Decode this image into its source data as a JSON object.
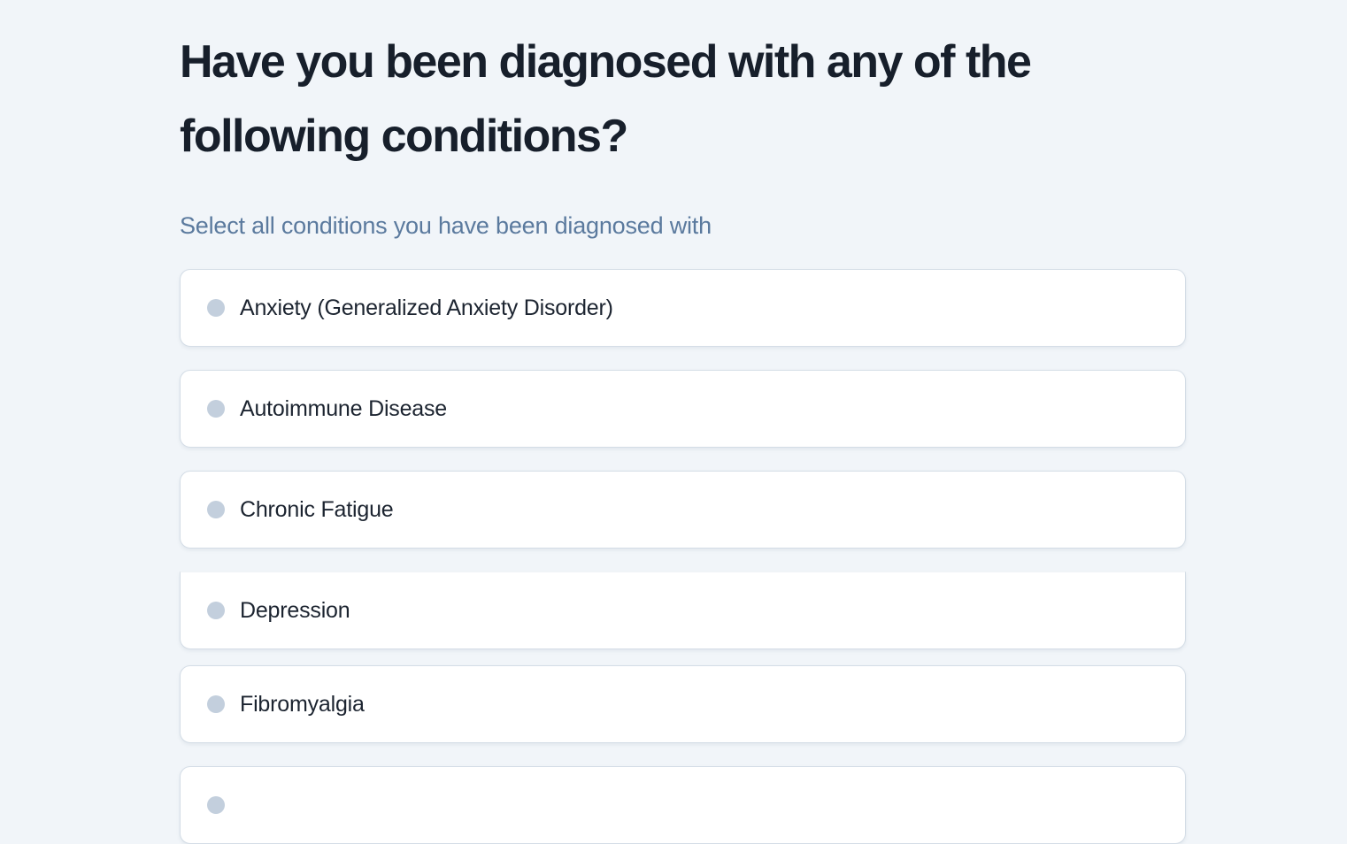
{
  "question": {
    "title": "Have you been diagnosed with any of the following conditions?",
    "subtitle": "Select all conditions you have been diagnosed with"
  },
  "options": [
    {
      "label": "Anxiety (Generalized Anxiety Disorder)"
    },
    {
      "label": "Autoimmune Disease"
    },
    {
      "label": "Chronic Fatigue"
    },
    {
      "label": "Depression",
      "clip_top": true
    },
    {
      "label": "Fibromyalgia"
    },
    {
      "label": "",
      "partial": true
    }
  ],
  "colors": {
    "page_background": "#f1f5f9",
    "title_text": "#171f2b",
    "subtitle_text": "#5b7a9e",
    "card_background": "#ffffff",
    "card_border": "#d4dde6",
    "dot": "#c3cfdd",
    "option_text": "#1c2430"
  }
}
